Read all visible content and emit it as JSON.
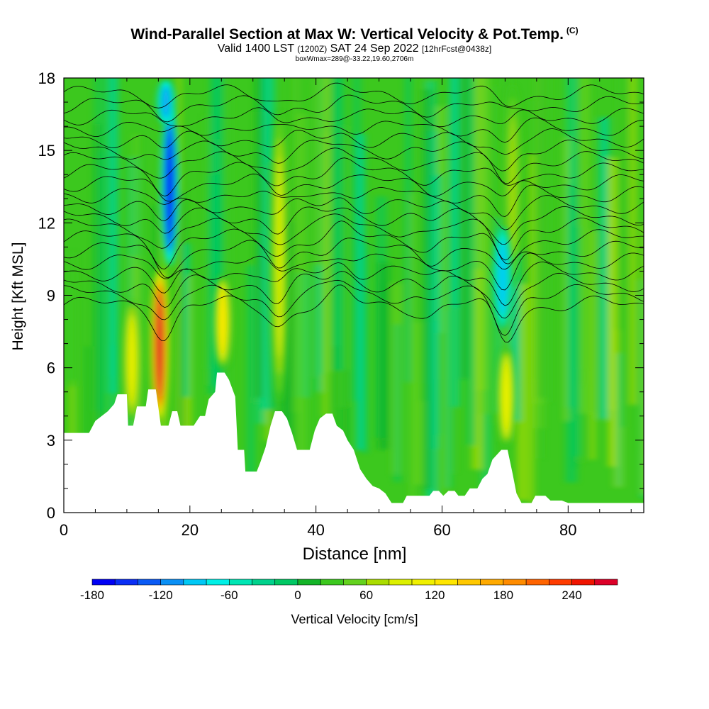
{
  "title": "Wind-Parallel Section at Max W: Vertical Velocity & Pot.Temp.",
  "title_mark": "(C)",
  "subtitle_a": "Valid 1400 LST",
  "subtitle_b": "(1200Z)",
  "subtitle_c": "SAT 24 Sep 2022",
  "subtitle_d": "[12hrFcst@0438z]",
  "subtitle2": "boxWmax=289@-33.22,19.60,2706m",
  "chart_data": {
    "type": "heatmap",
    "xlabel": "Distance [nm]",
    "ylabel": "Height [Kft MSL]",
    "xlim": [
      0,
      92
    ],
    "ylim": [
      0,
      18
    ],
    "xticks": [
      0,
      20,
      40,
      60,
      80
    ],
    "yticks": [
      0,
      3,
      6,
      9,
      12,
      15,
      18
    ],
    "colorbar": {
      "label": "Vertical Velocity [cm/s]",
      "ticks": [
        -180,
        -120,
        -60,
        0,
        60,
        120,
        180,
        240
      ],
      "levels": [
        -180,
        -160,
        -140,
        -120,
        -100,
        -80,
        -60,
        -40,
        -20,
        0,
        20,
        40,
        60,
        80,
        100,
        120,
        140,
        160,
        180,
        200,
        220,
        240,
        260,
        280
      ],
      "colors": [
        "#0000f5",
        "#0a2ef5",
        "#0a5af5",
        "#0a90f5",
        "#00c8f5",
        "#00f0e6",
        "#00e6b4",
        "#00d28c",
        "#00c864",
        "#14b428",
        "#3cc81e",
        "#64d21e",
        "#aadc00",
        "#dcf000",
        "#f0f000",
        "#ffe600",
        "#ffc800",
        "#ffaa00",
        "#ff8c00",
        "#ff6400",
        "#ff3c00",
        "#f01400",
        "#dc0028"
      ]
    },
    "terrain_kft": [
      [
        0,
        3.3
      ],
      [
        2,
        3.3
      ],
      [
        4,
        3.3
      ],
      [
        5,
        3.8
      ],
      [
        7,
        4.2
      ],
      [
        8,
        4.5
      ],
      [
        8.5,
        4.9
      ],
      [
        10,
        4.9
      ],
      [
        10.2,
        3.6
      ],
      [
        11,
        3.6
      ],
      [
        11.6,
        4.4
      ],
      [
        13,
        4.4
      ],
      [
        13.4,
        5.1
      ],
      [
        14.6,
        5.1
      ],
      [
        15.4,
        3.6
      ],
      [
        16.6,
        3.6
      ],
      [
        17.2,
        4.2
      ],
      [
        18,
        4.2
      ],
      [
        18.5,
        3.6
      ],
      [
        20.6,
        3.6
      ],
      [
        21.6,
        4.0
      ],
      [
        22.4,
        4.0
      ],
      [
        23,
        4.7
      ],
      [
        24,
        5.0
      ],
      [
        24.3,
        5.8
      ],
      [
        25.5,
        5.8
      ],
      [
        26.2,
        5.5
      ],
      [
        27.2,
        4.8
      ],
      [
        27.6,
        2.6
      ],
      [
        28.6,
        2.6
      ],
      [
        28.8,
        1.7
      ],
      [
        30.6,
        1.7
      ],
      [
        31.2,
        2.1
      ],
      [
        32,
        2.7
      ],
      [
        32.8,
        3.6
      ],
      [
        33.5,
        4.2
      ],
      [
        34.6,
        4.2
      ],
      [
        35.4,
        3.9
      ],
      [
        36.2,
        3.3
      ],
      [
        37,
        2.6
      ],
      [
        39,
        2.6
      ],
      [
        39.8,
        3.4
      ],
      [
        40.6,
        3.9
      ],
      [
        41.6,
        4.1
      ],
      [
        42.6,
        4.1
      ],
      [
        43.3,
        3.6
      ],
      [
        44.3,
        3.4
      ],
      [
        45,
        3.0
      ],
      [
        46,
        2.6
      ],
      [
        47,
        1.8
      ],
      [
        48,
        1.4
      ],
      [
        49,
        1.1
      ],
      [
        50,
        1.0
      ],
      [
        51,
        0.8
      ],
      [
        52,
        0.4
      ],
      [
        53.8,
        0.4
      ],
      [
        54.4,
        0.7
      ],
      [
        58,
        0.7
      ],
      [
        58.6,
        0.9
      ],
      [
        59.5,
        0.9
      ],
      [
        60.2,
        0.7
      ],
      [
        61,
        0.9
      ],
      [
        62,
        0.9
      ],
      [
        62.6,
        0.7
      ],
      [
        63.6,
        0.7
      ],
      [
        64.4,
        1.0
      ],
      [
        65.6,
        1.0
      ],
      [
        66.4,
        1.4
      ],
      [
        67.2,
        1.6
      ],
      [
        68,
        2.2
      ],
      [
        69.4,
        2.6
      ],
      [
        70.4,
        2.6
      ],
      [
        71.2,
        1.6
      ],
      [
        71.8,
        0.8
      ],
      [
        72.6,
        0.4
      ],
      [
        74.2,
        0.4
      ],
      [
        74.8,
        0.7
      ],
      [
        76.4,
        0.7
      ],
      [
        77.2,
        0.5
      ],
      [
        79,
        0.5
      ],
      [
        80,
        0.4
      ],
      [
        92,
        0.4
      ]
    ],
    "updrafts": [
      {
        "x": 15.2,
        "z_bottom": 3.6,
        "z_top": 10.3,
        "w_max": 289
      },
      {
        "x": 10.8,
        "z_bottom": 3.6,
        "z_top": 9.0,
        "w_max": 100
      },
      {
        "x": 25.2,
        "z_bottom": 5.8,
        "z_top": 10.0,
        "w_max": 120
      },
      {
        "x": 34.2,
        "z_bottom": 4.2,
        "z_top": 17.0,
        "w_max": 80
      },
      {
        "x": 70.2,
        "z_bottom": 2.6,
        "z_top": 7.0,
        "w_max": 110
      },
      {
        "x": 71.2,
        "z_bottom": 9.0,
        "z_top": 18.0,
        "w_max": 60
      }
    ],
    "downdrafts": [
      {
        "x": 16.8,
        "z_bottom": 10.0,
        "z_top": 17.0,
        "w_min": -180
      },
      {
        "x": 16.2,
        "z_bottom": 16.0,
        "z_top": 18.0,
        "w_min": -110
      },
      {
        "x": 69.6,
        "z_bottom": 7.5,
        "z_top": 12.0,
        "w_min": -100
      }
    ]
  }
}
